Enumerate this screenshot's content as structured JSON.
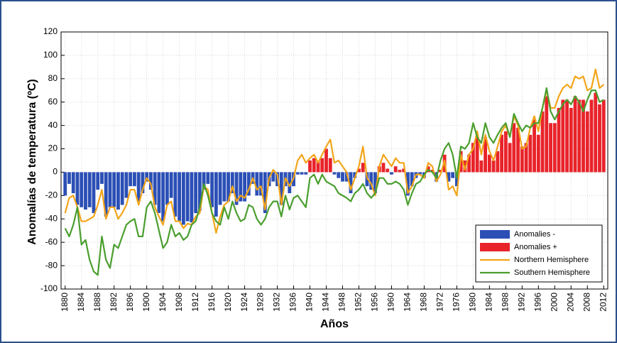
{
  "chart_data": {
    "type": "bar",
    "y_label": "Anomalías de temperatura (ºC)",
    "x_label": "Años",
    "x": [
      1880,
      1881,
      1882,
      1883,
      1884,
      1885,
      1886,
      1887,
      1888,
      1889,
      1890,
      1891,
      1892,
      1893,
      1894,
      1895,
      1896,
      1897,
      1898,
      1899,
      1900,
      1901,
      1902,
      1903,
      1904,
      1905,
      1906,
      1907,
      1908,
      1909,
      1910,
      1911,
      1912,
      1913,
      1914,
      1915,
      1916,
      1917,
      1918,
      1919,
      1920,
      1921,
      1922,
      1923,
      1924,
      1925,
      1926,
      1927,
      1928,
      1929,
      1930,
      1931,
      1932,
      1933,
      1934,
      1935,
      1936,
      1937,
      1938,
      1939,
      1940,
      1941,
      1942,
      1943,
      1944,
      1945,
      1946,
      1947,
      1948,
      1949,
      1950,
      1951,
      1952,
      1953,
      1954,
      1955,
      1956,
      1957,
      1958,
      1959,
      1960,
      1961,
      1962,
      1963,
      1964,
      1965,
      1966,
      1967,
      1968,
      1969,
      1970,
      1971,
      1972,
      1973,
      1974,
      1975,
      1976,
      1977,
      1978,
      1979,
      1980,
      1981,
      1982,
      1983,
      1984,
      1985,
      1986,
      1987,
      1988,
      1989,
      1990,
      1991,
      1992,
      1993,
      1994,
      1995,
      1996,
      1997,
      1998,
      1999,
      2000,
      2001,
      2002,
      2003,
      2004,
      2005,
      2006,
      2007,
      2008,
      2009,
      2010,
      2011,
      2012
    ],
    "series": [
      {
        "name": "Anomalies -",
        "type": "bar",
        "color": "#2b4fb5",
        "values": [
          -20,
          -10,
          -18,
          -28,
          -30,
          -32,
          -30,
          -35,
          -15,
          -10,
          -38,
          -30,
          -30,
          -32,
          -28,
          -22,
          -12,
          -12,
          -25,
          -18,
          -8,
          -15,
          -28,
          -35,
          -42,
          -28,
          -22,
          -38,
          -42,
          -45,
          -42,
          -43,
          -35,
          -33,
          -15,
          -10,
          -30,
          -38,
          -28,
          -25,
          -25,
          -18,
          -28,
          -25,
          -25,
          -20,
          -10,
          -20,
          -20,
          -35,
          -12,
          -8,
          -12,
          -28,
          -12,
          -18,
          -12,
          -2,
          -2,
          -2,
          null,
          null,
          null,
          null,
          null,
          null,
          -2,
          -5,
          -8,
          -8,
          -18,
          -5,
          null,
          null,
          -12,
          -15,
          -18,
          null,
          null,
          null,
          -2,
          null,
          null,
          null,
          -20,
          -12,
          -5,
          -2,
          -5,
          null,
          null,
          -8,
          null,
          null,
          -8,
          -5,
          -12,
          null,
          null,
          null,
          null,
          null,
          null,
          null,
          null,
          null,
          null,
          null,
          null,
          null,
          null,
          null,
          null,
          null,
          null,
          null,
          null,
          null,
          null,
          null,
          null,
          null,
          null,
          null,
          null,
          null,
          null,
          null,
          null,
          null,
          null,
          null,
          null
        ]
      },
      {
        "name": "Anomalies +",
        "type": "bar",
        "color": "#e8232a",
        "values": [
          null,
          null,
          null,
          null,
          null,
          null,
          null,
          null,
          null,
          null,
          null,
          null,
          null,
          null,
          null,
          null,
          null,
          null,
          null,
          null,
          null,
          null,
          null,
          null,
          null,
          null,
          null,
          null,
          null,
          null,
          null,
          null,
          null,
          null,
          null,
          null,
          null,
          null,
          null,
          null,
          null,
          null,
          null,
          null,
          null,
          null,
          null,
          null,
          null,
          null,
          null,
          null,
          null,
          null,
          null,
          null,
          null,
          null,
          null,
          null,
          10,
          12,
          10,
          12,
          20,
          12,
          null,
          null,
          null,
          null,
          null,
          null,
          3,
          8,
          null,
          null,
          null,
          5,
          8,
          3,
          null,
          5,
          2,
          3,
          null,
          null,
          null,
          null,
          null,
          5,
          2,
          null,
          2,
          15,
          null,
          null,
          null,
          18,
          10,
          15,
          25,
          30,
          10,
          30,
          15,
          10,
          18,
          32,
          35,
          25,
          42,
          38,
          22,
          25,
          32,
          45,
          32,
          52,
          65,
          42,
          42,
          55,
          62,
          62,
          55,
          65,
          62,
          62,
          52,
          62,
          68,
          58,
          62
        ]
      },
      {
        "name": "Northern Hemisphere",
        "type": "line",
        "color": "#f2a51a",
        "values": [
          -35,
          -22,
          -20,
          -30,
          -42,
          -42,
          -40,
          -38,
          -28,
          -15,
          -40,
          -30,
          -30,
          -40,
          -35,
          -28,
          -15,
          -15,
          -28,
          -15,
          -5,
          -10,
          -30,
          -38,
          -45,
          -28,
          -25,
          -42,
          -42,
          -48,
          -44,
          -45,
          -38,
          -35,
          -12,
          -15,
          -35,
          -52,
          -38,
          -28,
          -25,
          -12,
          -25,
          -20,
          -22,
          -15,
          -5,
          -15,
          -12,
          -32,
          -5,
          2,
          -2,
          -28,
          -5,
          -12,
          -5,
          10,
          15,
          8,
          12,
          15,
          8,
          15,
          22,
          28,
          8,
          10,
          5,
          0,
          -15,
          -5,
          5,
          22,
          -5,
          -10,
          -20,
          5,
          15,
          10,
          5,
          12,
          8,
          8,
          -18,
          -12,
          -2,
          -2,
          -5,
          8,
          5,
          -8,
          -2,
          10,
          -15,
          -12,
          -20,
          15,
          2,
          15,
          20,
          35,
          15,
          32,
          18,
          10,
          22,
          35,
          40,
          30,
          48,
          40,
          20,
          22,
          38,
          48,
          35,
          55,
          70,
          55,
          55,
          65,
          72,
          75,
          72,
          82,
          80,
          82,
          70,
          72,
          88,
          72,
          75
        ]
      },
      {
        "name": "Southern Hemisphere",
        "type": "line",
        "color": "#4a9e2e",
        "values": [
          -48,
          -55,
          -45,
          -30,
          -62,
          -58,
          -75,
          -85,
          -88,
          -55,
          -75,
          -82,
          -62,
          -65,
          -55,
          -45,
          -42,
          -40,
          -55,
          -55,
          -30,
          -25,
          -35,
          -50,
          -65,
          -60,
          -45,
          -55,
          -52,
          -58,
          -55,
          -45,
          -42,
          -30,
          -10,
          -20,
          -35,
          -42,
          -45,
          -30,
          -40,
          -25,
          -35,
          -42,
          -40,
          -28,
          -30,
          -40,
          -45,
          -40,
          -30,
          -25,
          -25,
          -38,
          -20,
          -32,
          -22,
          -20,
          -25,
          -30,
          -5,
          -2,
          -10,
          -2,
          -8,
          -10,
          -12,
          -18,
          -20,
          -22,
          -25,
          -18,
          -15,
          -10,
          -18,
          -22,
          -18,
          -5,
          -5,
          -10,
          -10,
          -8,
          -10,
          -15,
          -28,
          -18,
          -10,
          -8,
          -2,
          2,
          0,
          -5,
          10,
          20,
          25,
          15,
          -5,
          22,
          20,
          25,
          42,
          30,
          25,
          42,
          30,
          25,
          32,
          38,
          42,
          30,
          50,
          42,
          35,
          40,
          38,
          42,
          42,
          55,
          72,
          52,
          45,
          52,
          58,
          62,
          58,
          65,
          60,
          52,
          62,
          70,
          70,
          60,
          62
        ]
      }
    ],
    "xlim": [
      1879,
      2013
    ],
    "xticks": [
      1880,
      1884,
      1888,
      1892,
      1896,
      1900,
      1904,
      1908,
      1912,
      1916,
      1920,
      1924,
      1928,
      1932,
      1936,
      1940,
      1944,
      1948,
      1952,
      1956,
      1960,
      1964,
      1968,
      1972,
      1976,
      1980,
      1984,
      1988,
      1992,
      1996,
      2000,
      2004,
      2008,
      2012
    ],
    "ylim": [
      -100,
      120
    ],
    "yticks": [
      -100,
      -80,
      -60,
      -40,
      -20,
      0,
      20,
      40,
      60,
      80,
      100,
      120
    ],
    "grid": true,
    "legend": "lower right"
  }
}
